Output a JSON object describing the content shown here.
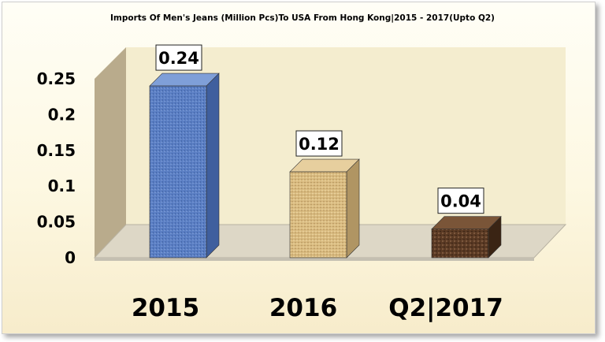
{
  "chart_data": {
    "type": "bar",
    "title": "Imports Of Men's Jeans (Million Pcs)To USA From Hong Kong|2015 - 2017(Upto Q2)",
    "categories": [
      "2015",
      "2016",
      "Q2|2017"
    ],
    "values": [
      0.24,
      0.12,
      0.04
    ],
    "data_labels": [
      "0.24",
      "0.12",
      "0.04"
    ],
    "yticks": [
      {
        "value": 0,
        "label": "0"
      },
      {
        "value": 0.05,
        "label": "0.05"
      },
      {
        "value": 0.1,
        "label": "0.1"
      },
      {
        "value": 0.15,
        "label": "0.15"
      },
      {
        "value": 0.2,
        "label": "0.2"
      },
      {
        "value": 0.25,
        "label": "0.25"
      }
    ],
    "ylim": [
      0,
      0.25
    ],
    "xlabel": "",
    "ylabel": "",
    "grid": false,
    "legend": "none",
    "three_d": true,
    "colors": {
      "bars": [
        "#5b7fc4",
        "#d9bb80",
        "#5a3a24"
      ],
      "floor": "#ddd7c6",
      "back_wall": "#f4edcf",
      "side_wall": "#b9ab8c"
    }
  }
}
